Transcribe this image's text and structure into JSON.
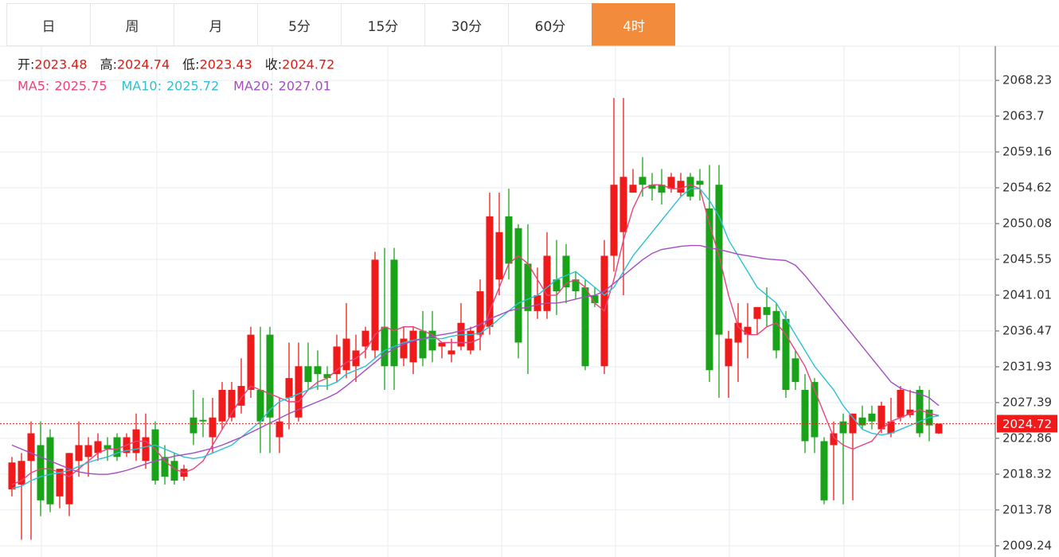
{
  "tabs": [
    "日",
    "周",
    "月",
    "5分",
    "15分",
    "30分",
    "60分",
    "4时"
  ],
  "active_tab": 7,
  "chart_data": {
    "type": "candlestick",
    "info": [
      {
        "label": "开:",
        "value": 2023.48
      },
      {
        "label": "高:",
        "value": 2024.74
      },
      {
        "label": "低:",
        "value": 2023.43
      },
      {
        "label": "收:",
        "value": 2024.72
      }
    ],
    "ylim": [
      2007.82,
      2072.57
    ],
    "yticks": [
      2009.24,
      2013.78,
      2018.32,
      2022.86,
      2027.39,
      2031.93,
      2036.47,
      2041.01,
      2045.55,
      2050.08,
      2054.62,
      2059.16,
      2063.7,
      2068.23
    ],
    "grid": true,
    "up_color": "#f01a1a",
    "down_color": "#19a319",
    "last_price": 2024.72,
    "ohlc": [
      [
        2016.4,
        2020.5,
        2015.5,
        2019.8
      ],
      [
        2017,
        2021,
        2010,
        2020
      ],
      [
        2020,
        2025,
        2010,
        2023.5
      ],
      [
        2022,
        2025,
        2013,
        2015
      ],
      [
        2023,
        2024,
        2013.5,
        2014.5
      ],
      [
        2015.5,
        2019,
        2014,
        2019
      ],
      [
        2014.5,
        2021,
        2013,
        2021
      ],
      [
        2020,
        2025,
        2018,
        2022
      ],
      [
        2020.5,
        2023,
        2018,
        2022
      ],
      [
        2021,
        2023.5,
        2020,
        2022.5
      ],
      [
        2022,
        2023,
        2020,
        2021.5
      ],
      [
        2023,
        2023.5,
        2020,
        2020.5
      ],
      [
        2021,
        2023.5,
        2020.5,
        2023
      ],
      [
        2021,
        2026,
        2020,
        2024
      ],
      [
        2020,
        2026,
        2019,
        2023
      ],
      [
        2024,
        2025,
        2017,
        2017.5
      ],
      [
        2020.5,
        2022,
        2017,
        2018
      ],
      [
        2020,
        2021,
        2017,
        2017.5
      ],
      [
        2018,
        2019.5,
        2017.5,
        2019
      ],
      [
        2025.5,
        2029,
        2022,
        2023.5
      ],
      [
        2025.2,
        2028,
        2023,
        2025
      ],
      [
        2023,
        2028,
        2021,
        2025.5
      ],
      [
        2025,
        2030,
        2024,
        2029
      ],
      [
        2025.5,
        2030,
        2025,
        2029
      ],
      [
        2027,
        2033,
        2026,
        2029.5
      ],
      [
        2029,
        2037,
        2028,
        2036
      ],
      [
        2029,
        2037,
        2021,
        2025
      ],
      [
        2036,
        2037,
        2021,
        2025.5
      ],
      [
        2023,
        2028,
        2021,
        2025
      ],
      [
        2028,
        2035,
        2024,
        2030.5
      ],
      [
        2025.5,
        2035,
        2025,
        2032
      ],
      [
        2032,
        2035,
        2029,
        2030
      ],
      [
        2032,
        2034,
        2029,
        2031
      ],
      [
        2031,
        2032,
        2029,
        2030.5
      ],
      [
        2031,
        2036,
        2030,
        2034.5
      ],
      [
        2031.5,
        2040,
        2030.5,
        2035.5
      ],
      [
        2032,
        2036,
        2030,
        2034
      ],
      [
        2034.5,
        2037,
        2033,
        2036.5
      ],
      [
        2034,
        2046.5,
        2033,
        2045.5
      ],
      [
        2037,
        2047,
        2029,
        2032
      ],
      [
        2045.5,
        2047,
        2029,
        2032
      ],
      [
        2033,
        2037,
        2032,
        2035.5
      ],
      [
        2032.5,
        2037,
        2031,
        2036.5
      ],
      [
        2036.5,
        2039,
        2032,
        2033
      ],
      [
        2036.5,
        2039,
        2032.5,
        2034
      ],
      [
        2034.5,
        2035,
        2033,
        2035
      ],
      [
        2033.5,
        2035.5,
        2032.5,
        2034
      ],
      [
        2034.5,
        2040,
        2034,
        2037.5
      ],
      [
        2034,
        2037,
        2033.5,
        2036.5
      ],
      [
        2036,
        2043,
        2034,
        2041.5
      ],
      [
        2037,
        2054,
        2036,
        2051
      ],
      [
        2043,
        2054,
        2041,
        2049
      ],
      [
        2051,
        2054.5,
        2043,
        2045
      ],
      [
        2049.5,
        2050,
        2033,
        2035
      ],
      [
        2045,
        2050,
        2031,
        2039
      ],
      [
        2039,
        2044.5,
        2038,
        2041
      ],
      [
        2039,
        2049,
        2038,
        2046
      ],
      [
        2043,
        2048,
        2038.5,
        2041.5
      ],
      [
        2046,
        2047.5,
        2040,
        2042
      ],
      [
        2043,
        2044,
        2040.5,
        2041.5
      ],
      [
        2042,
        2043,
        2031.5,
        2032
      ],
      [
        2041,
        2042,
        2039.5,
        2040
      ],
      [
        2032,
        2048,
        2031,
        2046
      ],
      [
        2046,
        2066,
        2044,
        2055
      ],
      [
        2049,
        2066,
        2041,
        2056
      ],
      [
        2054,
        2057,
        2054,
        2055
      ],
      [
        2056,
        2058.5,
        2053.5,
        2055
      ],
      [
        2055,
        2056.5,
        2053,
        2054.5
      ],
      [
        2055,
        2057,
        2052.5,
        2054
      ],
      [
        2054.5,
        2056.5,
        2054,
        2056
      ],
      [
        2054,
        2056.5,
        2053.5,
        2055.5
      ],
      [
        2056,
        2056.5,
        2053,
        2053.5
      ],
      [
        2055.5,
        2057,
        2053,
        2055
      ],
      [
        2052,
        2057.5,
        2030,
        2031.5
      ],
      [
        2055,
        2057.5,
        2028,
        2036
      ],
      [
        2032,
        2036.5,
        2028,
        2035.5
      ],
      [
        2035,
        2040,
        2030,
        2037.5
      ],
      [
        2036,
        2040,
        2033,
        2037
      ],
      [
        2038,
        2039.5,
        2036,
        2039.5
      ],
      [
        2039.5,
        2042,
        2037,
        2038.5
      ],
      [
        2039,
        2040,
        2033,
        2034
      ],
      [
        2038,
        2039,
        2028,
        2029
      ],
      [
        2033,
        2034,
        2029,
        2030
      ],
      [
        2029,
        2031,
        2021,
        2022.5
      ],
      [
        2030,
        2030.5,
        2021,
        2023
      ],
      [
        2022.5,
        2023,
        2014.5,
        2015
      ],
      [
        2022,
        2025,
        2015,
        2023.5
      ],
      [
        2025,
        2026,
        2014.5,
        2023.5
      ],
      [
        2023.5,
        2026,
        2015,
        2026
      ],
      [
        2025.5,
        2027,
        2024,
        2024.5
      ],
      [
        2026,
        2027,
        2024,
        2025
      ],
      [
        2024,
        2027.5,
        2023.5,
        2027
      ],
      [
        2023.5,
        2028,
        2023,
        2025
      ],
      [
        2025.5,
        2029.5,
        2025,
        2029
      ],
      [
        2025.8,
        2029,
        2025.5,
        2026.5
      ],
      [
        2029,
        2029.5,
        2023,
        2023.5
      ],
      [
        2026.5,
        2029,
        2022.5,
        2024.5
      ],
      [
        2023.48,
        2024.74,
        2023.43,
        2024.72
      ]
    ],
    "series": [
      {
        "name": "MA5:",
        "color": "#e8437a",
        "last": 2025.75,
        "values": [
          2017,
          2017.5,
          2018.5,
          2019,
          2019,
          2018.5,
          2018,
          2019,
          2020,
          2021,
          2021.5,
          2021.5,
          2022,
          2022.5,
          2022.5,
          2021.5,
          2020,
          2019,
          2018.5,
          2019,
          2020,
          2022,
          2024,
          2026,
          2028,
          2029.5,
          2029,
          2028.5,
          2028,
          2027.5,
          2027.5,
          2029,
          2030,
          2030.5,
          2031.5,
          2032.5,
          2033,
          2034,
          2036,
          2037,
          2036.5,
          2037,
          2037,
          2036.5,
          2036,
          2035,
          2035,
          2035,
          2035,
          2035.5,
          2039,
          2042,
          2045,
          2046,
          2045,
          2043,
          2041,
          2041,
          2042.5,
          2043,
          2042,
          2040,
          2039,
          2043,
          2048,
          2052,
          2054.5,
          2055,
          2055,
          2054.5,
          2054.5,
          2055,
          2054.5,
          2050,
          2046,
          2041,
          2037,
          2036,
          2036,
          2037,
          2037.5,
          2036,
          2034,
          2032,
          2029,
          2026,
          2023,
          2022,
          2021.5,
          2022,
          2022.5,
          2024,
          2025,
          2025.5,
          2026,
          2026.5,
          2026,
          2025.75
        ]
      },
      {
        "name": "MA10:",
        "color": "#2bbfd6",
        "last": 2025.72,
        "values": [
          2016.5,
          2016.8,
          2017.5,
          2018,
          2018.3,
          2018.5,
          2018.8,
          2019.3,
          2019.8,
          2020.2,
          2020.5,
          2021,
          2021.3,
          2021.5,
          2021.8,
          2022,
          2021.5,
          2021,
          2020.5,
          2020.3,
          2020.5,
          2021,
          2021.5,
          2022,
          2023,
          2024,
          2025,
          2026.5,
          2027.5,
          2028,
          2028.5,
          2029,
          2029.5,
          2029.5,
          2030,
          2031,
          2031.5,
          2032,
          2033,
          2034,
          2034.5,
          2035,
          2035.3,
          2035.5,
          2035.5,
          2035.5,
          2035.8,
          2036,
          2036,
          2036.2,
          2037,
          2038,
          2039,
          2040,
          2040.5,
          2041,
          2042,
          2043,
          2043.5,
          2044,
          2043,
          2042,
          2041,
          2042,
          2044,
          2046,
          2047.5,
          2049,
          2050.5,
          2052,
          2053.5,
          2054.5,
          2054.5,
          2053,
          2051,
          2048,
          2046,
          2044,
          2042,
          2041,
          2040,
          2038,
          2036,
          2034,
          2032,
          2030.5,
          2029,
          2027,
          2025.5,
          2024,
          2023.5,
          2023.3,
          2023.5,
          2024,
          2024.5,
          2025,
          2025.5,
          2025.72
        ]
      },
      {
        "name": "MA20:",
        "color": "#a54cc2",
        "last": 2027.01,
        "values": [
          2022,
          2021.5,
          2021,
          2020.5,
          2020,
          2019.5,
          2019,
          2018.6,
          2018.4,
          2018.3,
          2018.3,
          2018.5,
          2018.8,
          2019.2,
          2019.6,
          2020,
          2020.3,
          2020.6,
          2020.8,
          2021,
          2021.3,
          2021.6,
          2022,
          2022.5,
          2023,
          2023.6,
          2024.2,
          2024.8,
          2025.4,
          2026,
          2026.5,
          2027,
          2027.5,
          2028,
          2028.6,
          2029.5,
          2030.5,
          2031.5,
          2032.5,
          2033.5,
          2034.2,
          2034.8,
          2035.2,
          2035.5,
          2035.8,
          2036,
          2036.2,
          2036.5,
          2036.8,
          2037.3,
          2038,
          2038.5,
          2039,
          2039.3,
          2039.5,
          2039.8,
          2040,
          2040,
          2040.2,
          2040.5,
          2040.8,
          2041,
          2041.5,
          2042.5,
          2043.5,
          2044.5,
          2045.5,
          2046.3,
          2046.8,
          2047,
          2047.2,
          2047.3,
          2047.3,
          2047,
          2046.8,
          2046.5,
          2046.2,
          2046,
          2045.8,
          2045.6,
          2045.5,
          2045.4,
          2044.8,
          2043.5,
          2042,
          2040.5,
          2039,
          2037.5,
          2036,
          2034.5,
          2033,
          2031.5,
          2030,
          2029.2,
          2028.8,
          2028.5,
          2028,
          2027.01
        ]
      }
    ]
  }
}
